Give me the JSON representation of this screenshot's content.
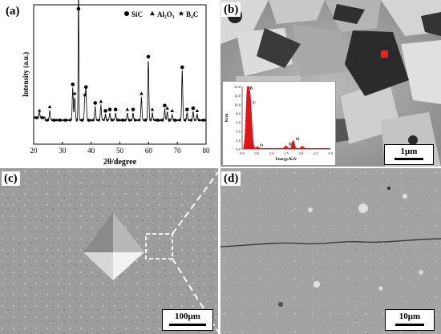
{
  "panels": {
    "a": {
      "label": "(a)",
      "chart_data": {
        "type": "line",
        "xlabel": "2θ/degree",
        "ylabel": "Intensity (a.u.)",
        "xlim": [
          20,
          80
        ],
        "xticks": [
          20,
          30,
          40,
          50,
          60,
          70,
          80
        ],
        "legend": [
          {
            "marker": "circle",
            "name": "SiC"
          },
          {
            "marker": "triangle",
            "name": "Al₂O₃"
          },
          {
            "marker": "star",
            "name": "B₄C"
          }
        ],
        "legend_position": "top-right",
        "peaks": [
          {
            "x": 22.0,
            "h": 0.04,
            "marker": "star"
          },
          {
            "x": 25.6,
            "h": 0.07,
            "marker": "triangle"
          },
          {
            "x": 33.6,
            "h": 0.24,
            "marker": "circle"
          },
          {
            "x": 34.3,
            "h": 0.17,
            "marker": "star"
          },
          {
            "x": 35.6,
            "h": 1.0,
            "marker": "circle"
          },
          {
            "x": 37.8,
            "h": 0.16,
            "marker": "star"
          },
          {
            "x": 38.2,
            "h": 0.22,
            "marker": "circle"
          },
          {
            "x": 41.4,
            "h": 0.1,
            "marker": "circle"
          },
          {
            "x": 43.4,
            "h": 0.11,
            "marker": "triangle"
          },
          {
            "x": 45.0,
            "h": 0.04,
            "marker": "circle"
          },
          {
            "x": 46.5,
            "h": 0.05,
            "marker": "circle"
          },
          {
            "x": 48.5,
            "h": 0.05,
            "marker": "circle"
          },
          {
            "x": 52.6,
            "h": 0.05,
            "marker": "triangle"
          },
          {
            "x": 54.6,
            "h": 0.05,
            "marker": "circle"
          },
          {
            "x": 57.5,
            "h": 0.17,
            "marker": "triangle"
          },
          {
            "x": 59.9,
            "h": 0.45,
            "marker": "circle"
          },
          {
            "x": 61.3,
            "h": 0.05,
            "marker": "triangle"
          },
          {
            "x": 65.6,
            "h": 0.08,
            "marker": "circle"
          },
          {
            "x": 66.5,
            "h": 0.06,
            "marker": "triangle"
          },
          {
            "x": 68.2,
            "h": 0.04,
            "marker": "triangle"
          },
          {
            "x": 71.7,
            "h": 0.37,
            "marker": "circle"
          },
          {
            "x": 73.4,
            "h": 0.05,
            "marker": "circle"
          },
          {
            "x": 75.5,
            "h": 0.06,
            "marker": "circle"
          },
          {
            "x": 76.9,
            "h": 0.04,
            "marker": "triangle"
          }
        ]
      }
    },
    "b": {
      "label": "(b)",
      "scale": "1μm",
      "eds": {
        "type": "area",
        "xlabel": "Energy/KeV",
        "ylabel": "Kcnt",
        "xlim": [
          0,
          3.0
        ],
        "ylim": [
          0,
          14
        ],
        "xticks": [
          "0.0",
          "0.5",
          "1.0",
          "1.5",
          "2.0",
          "2.5",
          "3.0"
        ],
        "yticks": [
          "0.0",
          "2.0",
          "4.0",
          "6.0",
          "8.0",
          "10.0",
          "12.0",
          "14.0"
        ],
        "peaks": [
          {
            "label": "B",
            "x": 0.18,
            "y": 13.2
          },
          {
            "label": "C",
            "x": 0.28,
            "y": 10.0
          },
          {
            "label": "O",
            "x": 0.52,
            "y": 0.4
          },
          {
            "label": "Al",
            "x": 1.49,
            "y": 0.6
          },
          {
            "label": "Si",
            "x": 1.74,
            "y": 1.8
          },
          {
            "label": "",
            "x": 2.05,
            "y": 0.5
          }
        ]
      }
    },
    "c": {
      "label": "(c)",
      "scale": "100μm"
    },
    "d": {
      "label": "(d)",
      "scale": "10μm"
    }
  }
}
